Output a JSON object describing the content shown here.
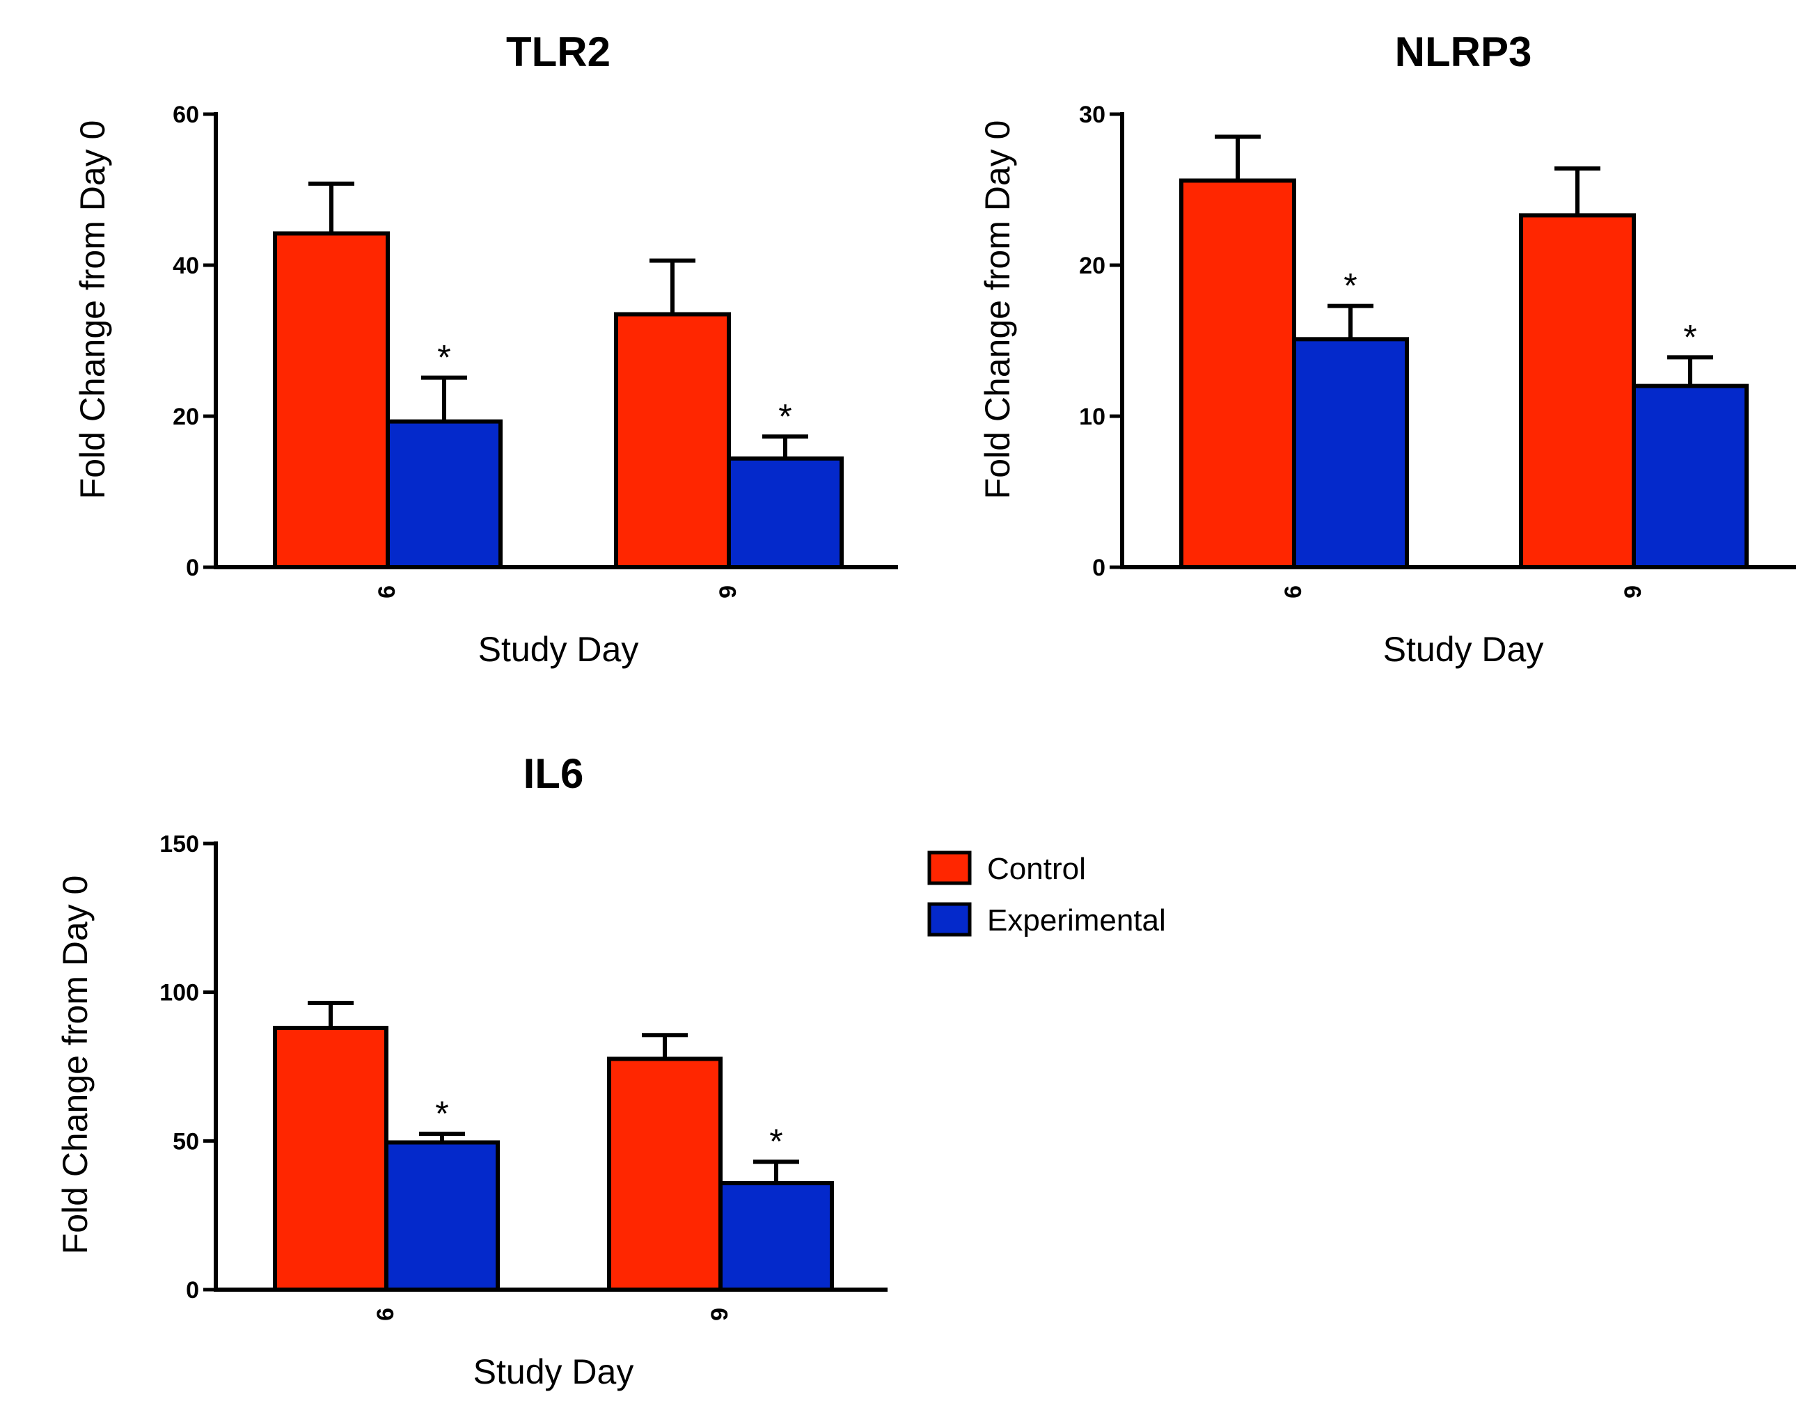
{
  "legend": [
    {
      "label": "Control",
      "color": "#ff2600"
    },
    {
      "label": "Experimental",
      "color": "#0429cb"
    }
  ],
  "chart_data": [
    {
      "type": "bar",
      "title": "TLR2",
      "xlabel": "Study Day",
      "ylabel": "Fold Change from Day 0",
      "ylim": [
        0,
        60
      ],
      "yticks": [
        "0",
        "20",
        "40",
        "60"
      ],
      "categories": [
        "6",
        "9"
      ],
      "series": [
        {
          "name": "Control",
          "color": "#ff2600",
          "values": [
            44.2,
            33.5
          ],
          "error": [
            6.6,
            7.1
          ],
          "significant": [
            false,
            false
          ]
        },
        {
          "name": "Experimental",
          "color": "#0429cb",
          "values": [
            19.3,
            14.4
          ],
          "error": [
            5.8,
            2.9
          ],
          "significant": [
            true,
            true
          ]
        }
      ],
      "annotation": "*"
    },
    {
      "type": "bar",
      "title": "NLRP3",
      "xlabel": "Study Day",
      "ylabel": "Fold Change from Day 0",
      "ylim": [
        0,
        30
      ],
      "yticks": [
        "0",
        "10",
        "20",
        "30"
      ],
      "categories": [
        "6",
        "9"
      ],
      "series": [
        {
          "name": "Control",
          "color": "#ff2600",
          "values": [
            25.6,
            23.3
          ],
          "error": [
            2.9,
            3.1
          ],
          "significant": [
            false,
            false
          ]
        },
        {
          "name": "Experimental",
          "color": "#0429cb",
          "values": [
            15.1,
            12.0
          ],
          "error": [
            2.2,
            1.9
          ],
          "significant": [
            true,
            true
          ]
        }
      ],
      "annotation": "*"
    },
    {
      "type": "bar",
      "title": "IL6",
      "xlabel": "Study Day",
      "ylabel": "Fold Change from Day 0",
      "ylim": [
        0,
        150
      ],
      "yticks": [
        "0",
        "50",
        "100",
        "150"
      ],
      "categories": [
        "6",
        "9"
      ],
      "series": [
        {
          "name": "Control",
          "color": "#ff2600",
          "values": [
            88.0,
            77.6
          ],
          "error": [
            8.4,
            8.0
          ],
          "significant": [
            false,
            false
          ]
        },
        {
          "name": "Experimental",
          "color": "#0429cb",
          "values": [
            49.5,
            35.8
          ],
          "error": [
            2.9,
            7.2
          ],
          "significant": [
            true,
            true
          ]
        }
      ],
      "annotation": "*"
    }
  ]
}
